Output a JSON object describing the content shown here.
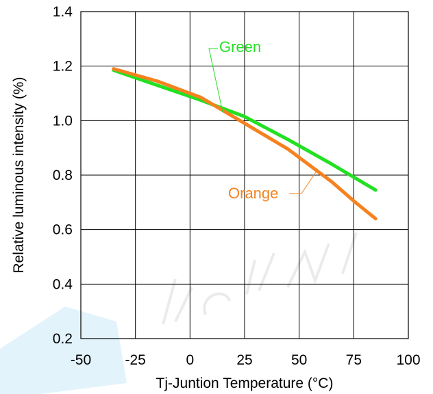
{
  "chart_data": {
    "type": "line",
    "xlabel": "Tj-Juntion Temperature (°C)",
    "ylabel": "Relative luminous intensity (%)",
    "xlim": [
      -50,
      100
    ],
    "ylim": [
      0.2,
      1.4
    ],
    "xticks": [
      -50,
      -25,
      0,
      25,
      50,
      75,
      100
    ],
    "xtick_labels": [
      "-50",
      "-25",
      "0",
      "25",
      "50",
      "75",
      "100"
    ],
    "yticks": [
      0.2,
      0.4,
      0.6,
      0.8,
      1.0,
      1.2,
      1.4
    ],
    "ytick_labels": [
      "0.2",
      "0.4",
      "0.6",
      "0.8",
      "1.0",
      "1.2",
      "1.4"
    ],
    "grid": true,
    "series": [
      {
        "name": "Green",
        "color": "#22e022",
        "x": [
          -35,
          -15,
          5,
          25,
          45,
          65,
          85
        ],
        "y": [
          1.185,
          1.13,
          1.075,
          1.015,
          0.93,
          0.84,
          0.745
        ]
      },
      {
        "name": "Orange",
        "color": "#f5821f",
        "x": [
          -35,
          -15,
          5,
          25,
          45,
          55,
          65,
          75,
          85
        ],
        "y": [
          1.19,
          1.145,
          1.085,
          0.99,
          0.895,
          0.835,
          0.775,
          0.705,
          0.64
        ]
      }
    ],
    "annotations": [
      {
        "text": "Green",
        "series": "Green"
      },
      {
        "text": "Orange",
        "series": "Orange"
      }
    ]
  }
}
